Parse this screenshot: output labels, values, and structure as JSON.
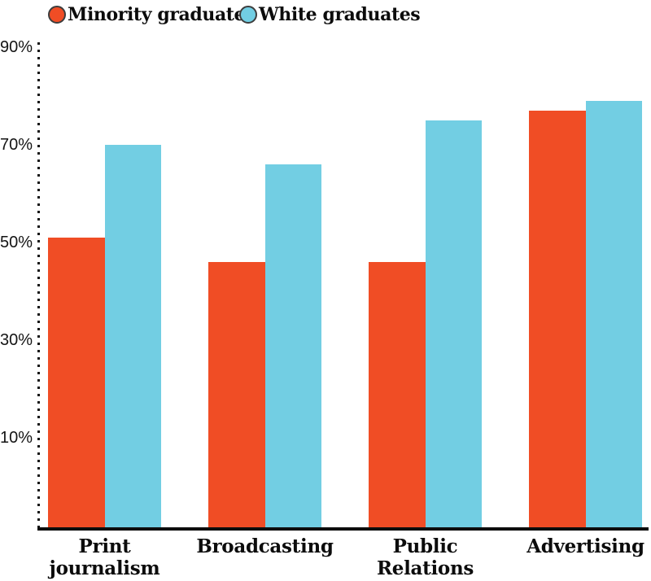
{
  "chart_data": {
    "type": "bar",
    "title": "",
    "categories": [
      "Print journalism",
      "Broadcasting",
      "Public Relations",
      "Advertising"
    ],
    "category_label_lines": [
      [
        "Print",
        "journalism"
      ],
      [
        "Broadcasting"
      ],
      [
        "Public",
        "Relations"
      ],
      [
        "Advertising"
      ]
    ],
    "series": [
      {
        "name": "Minority graduates",
        "color": "#F04D25",
        "values": [
          51,
          46,
          46,
          77
        ]
      },
      {
        "name": "White graduates",
        "color": "#72CEE3",
        "values": [
          70,
          66,
          75,
          79
        ]
      }
    ],
    "unit": "%",
    "xlabel": "",
    "ylabel": "",
    "y_ticks": [
      90,
      70,
      50,
      30,
      10
    ],
    "y_tick_labels": [
      "90%",
      "70%",
      "50%",
      "30%",
      "10%"
    ],
    "ylim": [
      0,
      100
    ],
    "grid": false,
    "legend_position": "top-left",
    "axis_style": "dotted-vertical-y-solid-baseline",
    "colors": {
      "background": "#ffffff",
      "axis": "#0d0d0d",
      "text": "#0c0c0c"
    }
  }
}
